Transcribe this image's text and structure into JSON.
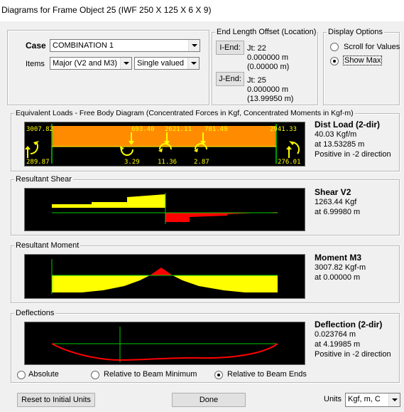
{
  "window": {
    "title": "Diagrams for Frame Object 25  (IWF 250 X 125 X 6 X 9)"
  },
  "case": {
    "label": "Case",
    "value": "COMBINATION 1"
  },
  "items": {
    "label": "Items",
    "value": "Major (V2 and M3)",
    "mode": "Single valued"
  },
  "end_length_offset": {
    "legend": "End Length Offset (Location)",
    "i_end": {
      "button": "I-End:",
      "joint": "Jt:  22",
      "offset": "0.000000 m",
      "location": "(0.00000 m)"
    },
    "j_end": {
      "button": "J-End:",
      "joint": "Jt:  25",
      "offset": "0.000000 m",
      "location": "(13.99950 m)"
    }
  },
  "display_options": {
    "legend": "Display Options",
    "scroll": "Scroll for Values",
    "show_max": "Show Max",
    "selected": "show_max"
  },
  "fbd": {
    "legend": "Equivalent Loads - Free Body Diagram  (Concentrated Forces in Kgf, Concentrated Moments in Kgf-m)",
    "moment_left": "3007.82",
    "moment_right": "2941.33",
    "reaction_left": "289.87",
    "reaction_right": "276.01",
    "point_loads": [
      "693.40",
      "2621.11",
      "781.49"
    ],
    "point_moments": [
      "3.29",
      "11.36",
      "2.87"
    ],
    "info": {
      "heading": "Dist Load (2-dir)",
      "value": "40.03 Kgf/m",
      "at": "at 13.53285 m",
      "direction": "Positive in -2 direction"
    },
    "colors": {
      "load": "#ff8c00",
      "arrow": "#ffff00",
      "support": "#00cc00"
    }
  },
  "shear": {
    "legend": "Resultant Shear",
    "info": {
      "heading": "Shear V2",
      "value": "1263.44 Kgf",
      "at": "at 6.99980 m"
    },
    "colors": {
      "positive": "#ffff00",
      "negative": "#ff0000"
    }
  },
  "moment": {
    "legend": "Resultant Moment",
    "info": {
      "heading": "Moment M3",
      "value": "3007.82 Kgf-m",
      "at": "at 0.00000 m"
    }
  },
  "deflection": {
    "legend": "Deflections",
    "info": {
      "heading": "Deflection (2-dir)",
      "value": "0.023764 m",
      "at": "at 4.19985 m",
      "direction": "Positive in -2 direction"
    },
    "options": {
      "absolute": "Absolute",
      "relative_min": "Relative to Beam Minimum",
      "relative_ends": "Relative to Beam Ends"
    },
    "selected": "relative_ends"
  },
  "footer": {
    "reset": "Reset to Initial Units",
    "done": "Done",
    "units_label": "Units",
    "units_value": "Kgf, m, C"
  }
}
